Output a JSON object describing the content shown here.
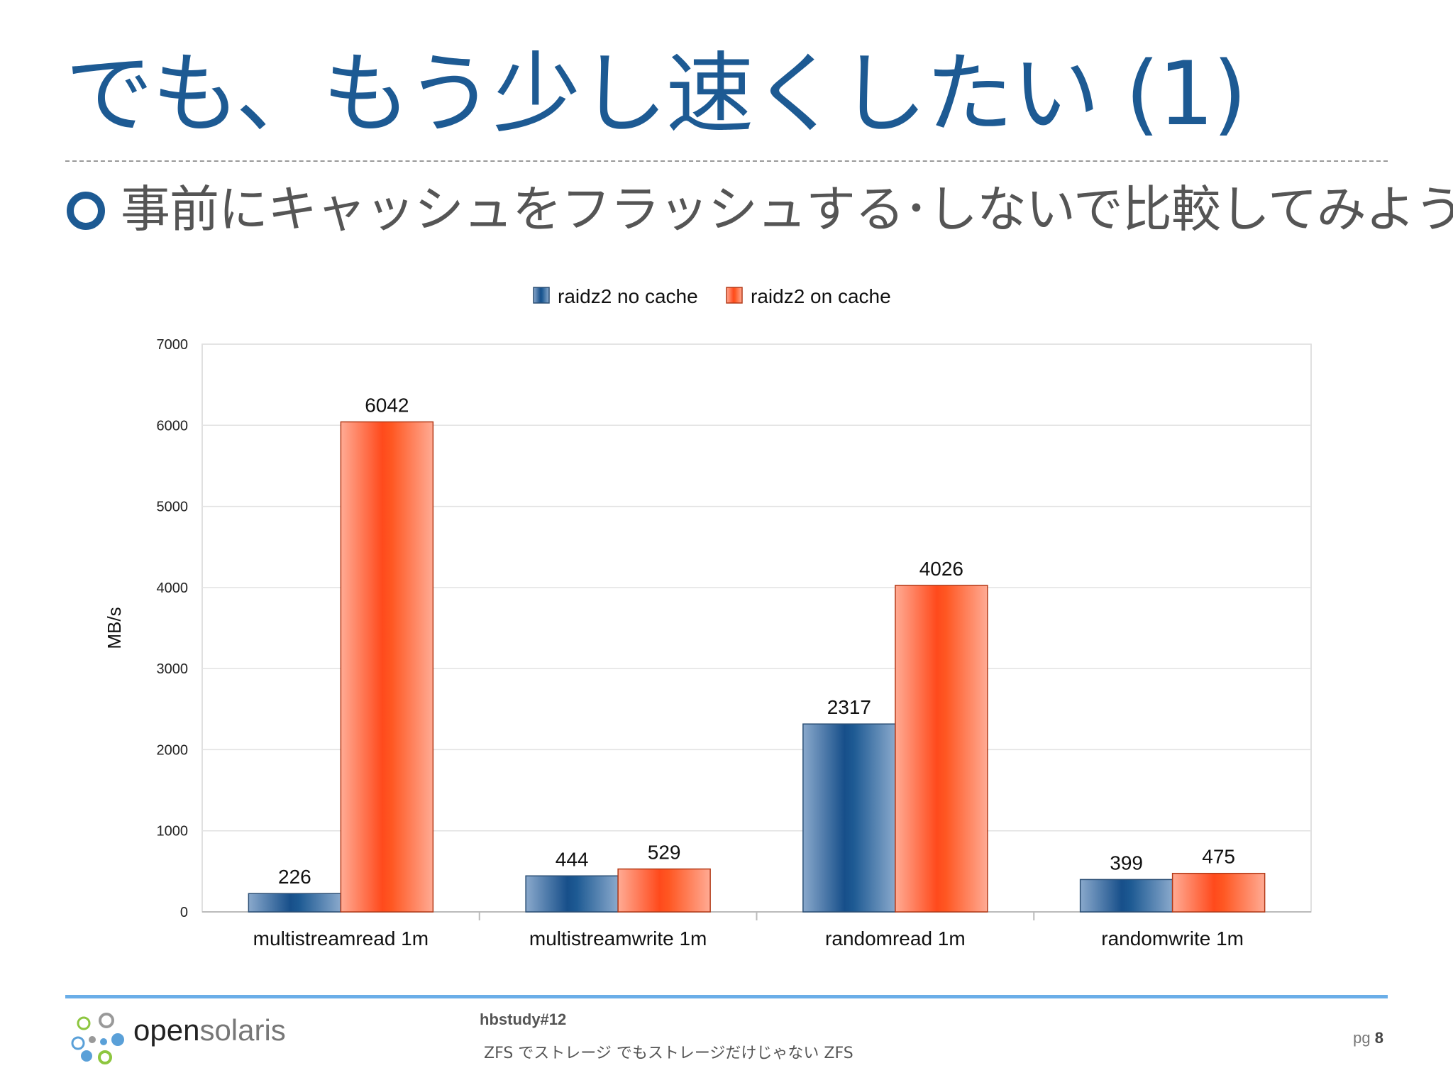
{
  "slide": {
    "title": "でも、もう少し速くしたい (1)",
    "bullet": "事前にキャッシュをフラッシュする･しないで比較してみよう"
  },
  "footer": {
    "logo_open": "open",
    "logo_solaris": "solaris",
    "event": "hbstudy#12",
    "subtitle": "ZFS でストレージ でもストレージだけじゃない ZFS",
    "page_prefix": "pg",
    "page_number": "8"
  },
  "colors": {
    "title": "#1d5a93",
    "no_cache": "#1d5a93",
    "on_cache": "#ff5722",
    "footer_rule": "#6aaee8"
  },
  "chart_data": {
    "type": "bar",
    "categories": [
      "multistreamread 1m",
      "multistreamwrite 1m",
      "randomread 1m",
      "randomwrite  1m"
    ],
    "series": [
      {
        "name": "raidz2 no cache",
        "values": [
          226,
          444,
          2317,
          399
        ]
      },
      {
        "name": "raidz2 on cache",
        "values": [
          6042,
          529,
          4026,
          475
        ]
      }
    ],
    "title": "",
    "xlabel": "",
    "ylabel": "MB/s",
    "ylim": [
      0,
      7000
    ],
    "yticks": [
      0,
      1000,
      2000,
      3000,
      4000,
      5000,
      6000,
      7000
    ],
    "grid": true,
    "legend": "top"
  }
}
